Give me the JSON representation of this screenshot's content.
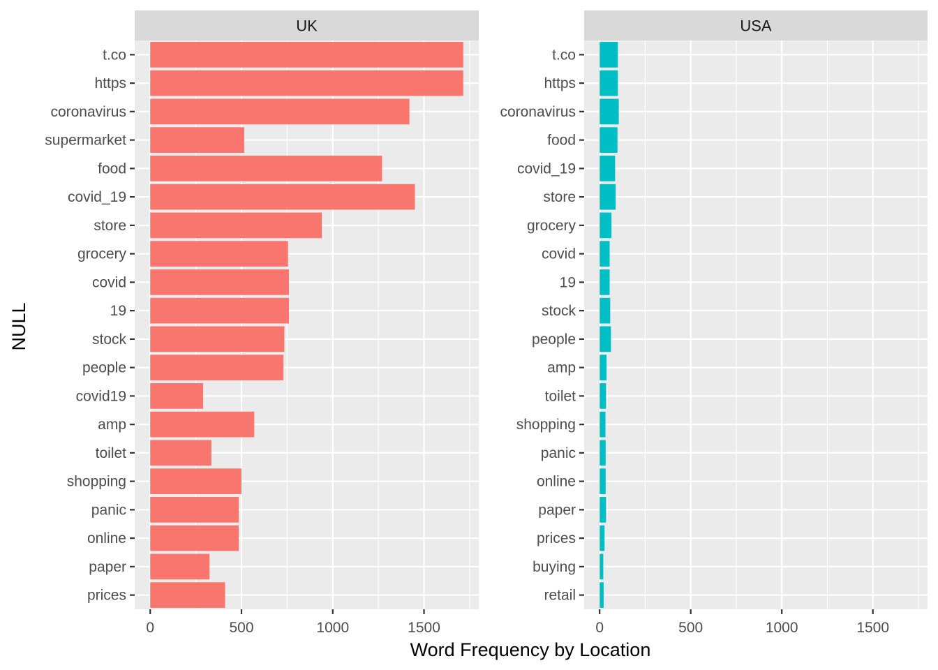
{
  "chart_data": {
    "type": "bar",
    "orientation": "horizontal",
    "xlabel": "Word Frequency by Location",
    "ylabel": "NULL",
    "xlim": [
      -85,
      1800
    ],
    "x_ticks": [
      0,
      500,
      1000,
      1500
    ],
    "grid": true,
    "facets": [
      {
        "name": "UK",
        "color": "#F8766D",
        "categories": [
          "t.co",
          "https",
          "coronavirus",
          "supermarket",
          "food",
          "covid_19",
          "store",
          "grocery",
          "covid",
          "19",
          "stock",
          "people",
          "covid19",
          "amp",
          "toilet",
          "shopping",
          "panic",
          "online",
          "paper",
          "prices"
        ],
        "values": [
          1715,
          1715,
          1420,
          515,
          1270,
          1450,
          940,
          755,
          760,
          760,
          735,
          730,
          290,
          570,
          335,
          500,
          485,
          485,
          325,
          410
        ]
      },
      {
        "name": "USA",
        "color": "#00BFC4",
        "categories": [
          "t.co",
          "https",
          "coronavirus",
          "food",
          "covid_19",
          "store",
          "grocery",
          "covid",
          "19",
          "stock",
          "people",
          "amp",
          "toilet",
          "shopping",
          "panic",
          "online",
          "paper",
          "prices",
          "buying",
          "retail"
        ],
        "values": [
          100,
          100,
          105,
          98,
          85,
          88,
          65,
          55,
          55,
          58,
          62,
          38,
          35,
          32,
          33,
          33,
          35,
          27,
          20,
          22
        ]
      }
    ]
  }
}
